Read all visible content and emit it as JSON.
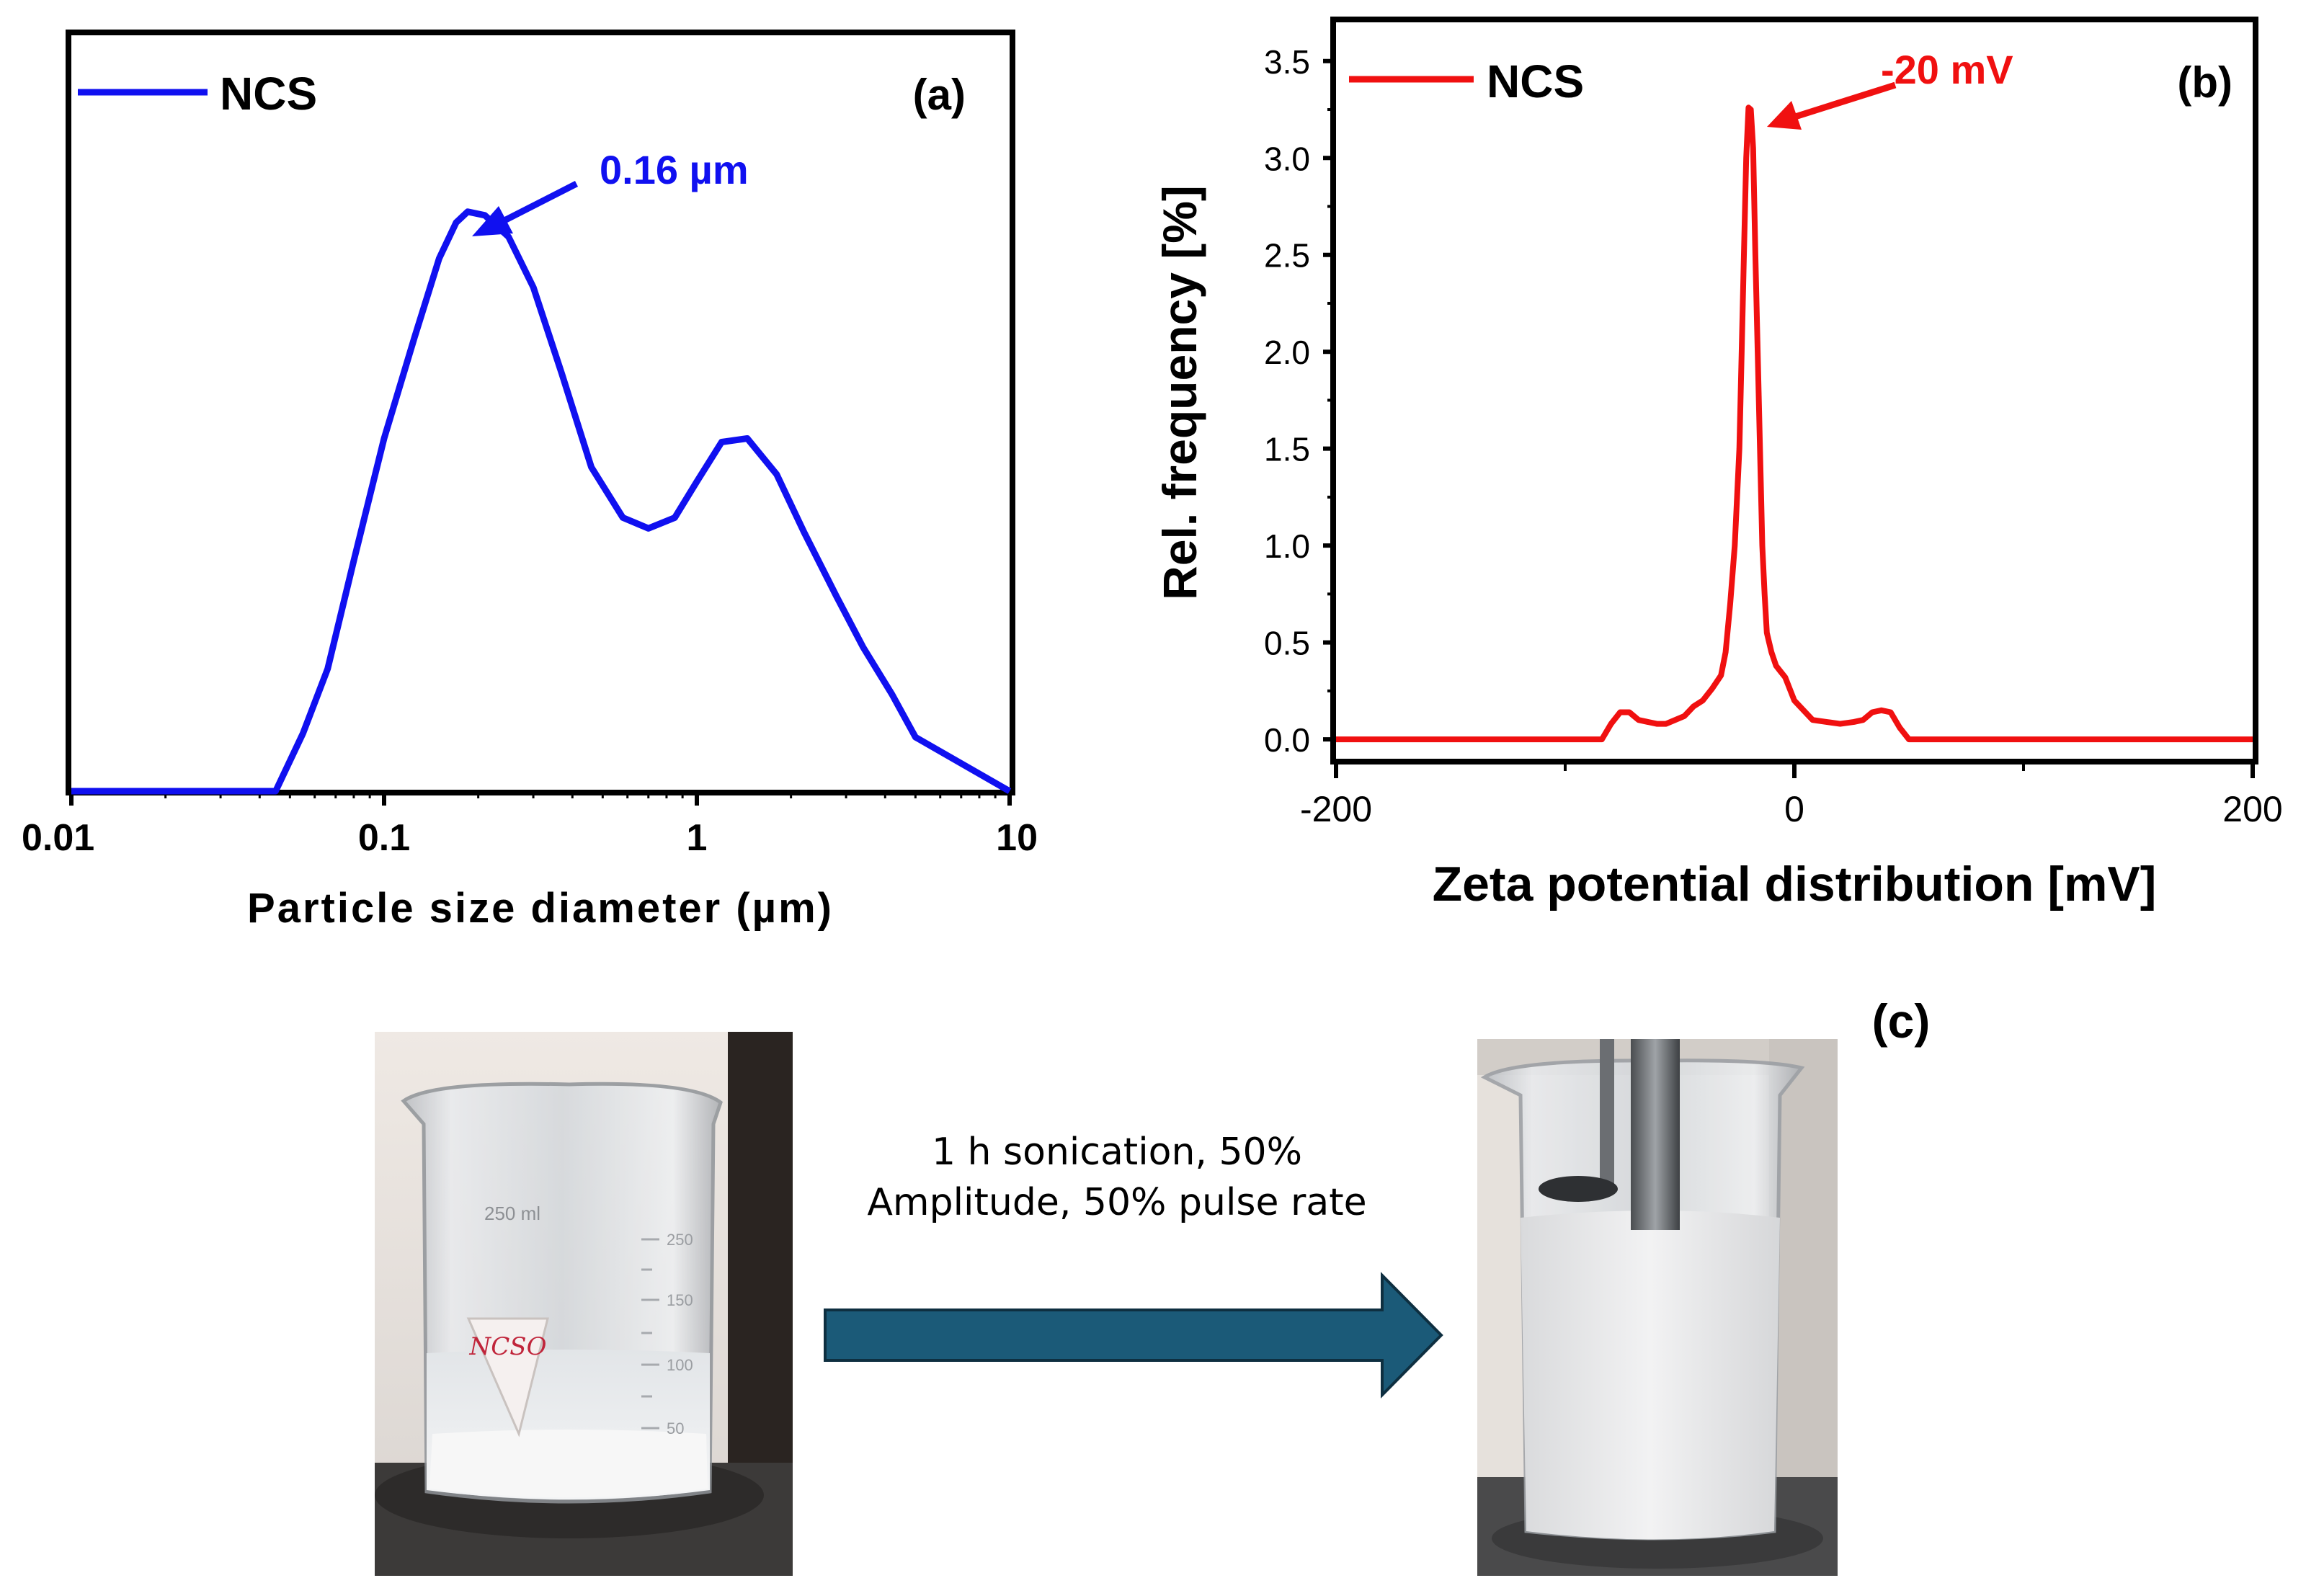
{
  "colors": {
    "series_a": "#1010f0",
    "series_b": "#f01010",
    "arrow": "#1b5a78",
    "axis": "#000000"
  },
  "chart_data": [
    {
      "panel": "(a)",
      "type": "line",
      "x_scale": "log",
      "title": "",
      "xlabel": "Particle size diameter (µm)",
      "ylabel": "",
      "xlim": [
        0.01,
        10
      ],
      "ylim": [
        0,
        1.05
      ],
      "x_ticks": [
        0.01,
        0.1,
        1,
        10
      ],
      "x_tick_labels": [
        "0.01",
        "0.1",
        "1",
        "10"
      ],
      "y_ticks_shown": false,
      "legend": {
        "label": "NCS",
        "position": "top-left"
      },
      "annotation": {
        "text": "0.16 µm",
        "x": 0.17,
        "y": 1.0
      },
      "series": [
        {
          "name": "NCS",
          "x": [
            0.01,
            0.045,
            0.055,
            0.066,
            0.08,
            0.1,
            0.125,
            0.15,
            0.17,
            0.185,
            0.21,
            0.25,
            0.3,
            0.37,
            0.46,
            0.58,
            0.7,
            0.85,
            1.0,
            1.2,
            1.45,
            1.8,
            2.2,
            2.8,
            3.4,
            4.2,
            5.0,
            10.0
          ],
          "y": [
            0.0,
            0.0,
            0.08,
            0.17,
            0.32,
            0.49,
            0.63,
            0.74,
            0.79,
            0.805,
            0.8,
            0.77,
            0.7,
            0.58,
            0.45,
            0.38,
            0.365,
            0.38,
            0.43,
            0.485,
            0.49,
            0.44,
            0.36,
            0.27,
            0.2,
            0.135,
            0.075,
            0.0
          ]
        }
      ]
    },
    {
      "panel": "(b)",
      "type": "line",
      "title": "",
      "xlabel": "Zeta potential distribution [mV]",
      "ylabel": "Rel. frequency [%]",
      "xlim": [
        -200,
        200
      ],
      "ylim": [
        -0.1,
        3.7
      ],
      "x_ticks": [
        -200,
        0,
        200
      ],
      "y_ticks": [
        0.0,
        0.5,
        1.0,
        1.5,
        2.0,
        2.5,
        3.0,
        3.5
      ],
      "y_tick_labels": [
        "0.0",
        "0.5",
        "1.0",
        "1.5",
        "2.0",
        "2.5",
        "3.0",
        "3.5"
      ],
      "legend": {
        "label": "NCS",
        "position": "top-left"
      },
      "annotation": {
        "text": "-20 mV",
        "x": -20,
        "y": 3.25
      },
      "series": [
        {
          "name": "NCS",
          "x": [
            -200,
            -84,
            -80,
            -76,
            -72,
            -68,
            -64,
            -60,
            -56,
            -52,
            -48,
            -44,
            -40,
            -36,
            -32,
            -30,
            -28,
            -26,
            -24,
            -23,
            -22,
            -21,
            -20,
            -19,
            -18,
            -17,
            -16,
            -15,
            -14,
            -13,
            -12,
            -10,
            -8,
            -6,
            -4,
            0,
            4,
            8,
            14,
            20,
            26,
            30,
            34,
            38,
            42,
            46,
            50,
            200
          ],
          "y": [
            0.0,
            0.0,
            0.08,
            0.14,
            0.14,
            0.1,
            0.09,
            0.08,
            0.08,
            0.1,
            0.12,
            0.17,
            0.2,
            0.26,
            0.33,
            0.45,
            0.7,
            1.0,
            1.5,
            2.0,
            2.5,
            3.0,
            3.26,
            3.25,
            3.05,
            2.5,
            2.0,
            1.5,
            1.0,
            0.75,
            0.55,
            0.45,
            0.38,
            0.35,
            0.32,
            0.2,
            0.15,
            0.1,
            0.09,
            0.08,
            0.09,
            0.1,
            0.14,
            0.15,
            0.14,
            0.06,
            0.0,
            0.0
          ]
        }
      ]
    }
  ],
  "panel_c": {
    "label": "(c)",
    "process_text_line1": "1 h sonication, 50%",
    "process_text_line2": "Amplitude, 50% pulse rate",
    "beaker_label": "NCSO",
    "beaker_volume_marks": [
      "250 ml",
      "250",
      "150",
      "100",
      "50"
    ]
  }
}
